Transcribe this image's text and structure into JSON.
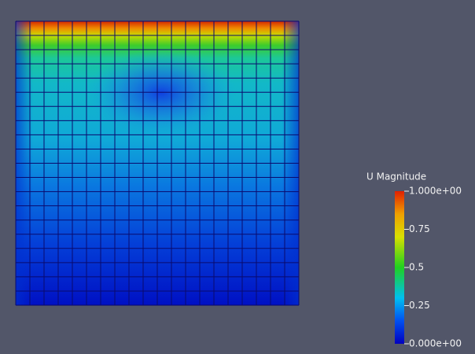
{
  "legend": {
    "title": "U Magnitude",
    "ticks": [
      {
        "value": 1,
        "label": "1.000e+00"
      },
      0.75,
      0.5,
      0.25,
      {
        "value": 0,
        "label": "0.000e+00"
      }
    ]
  }
}
